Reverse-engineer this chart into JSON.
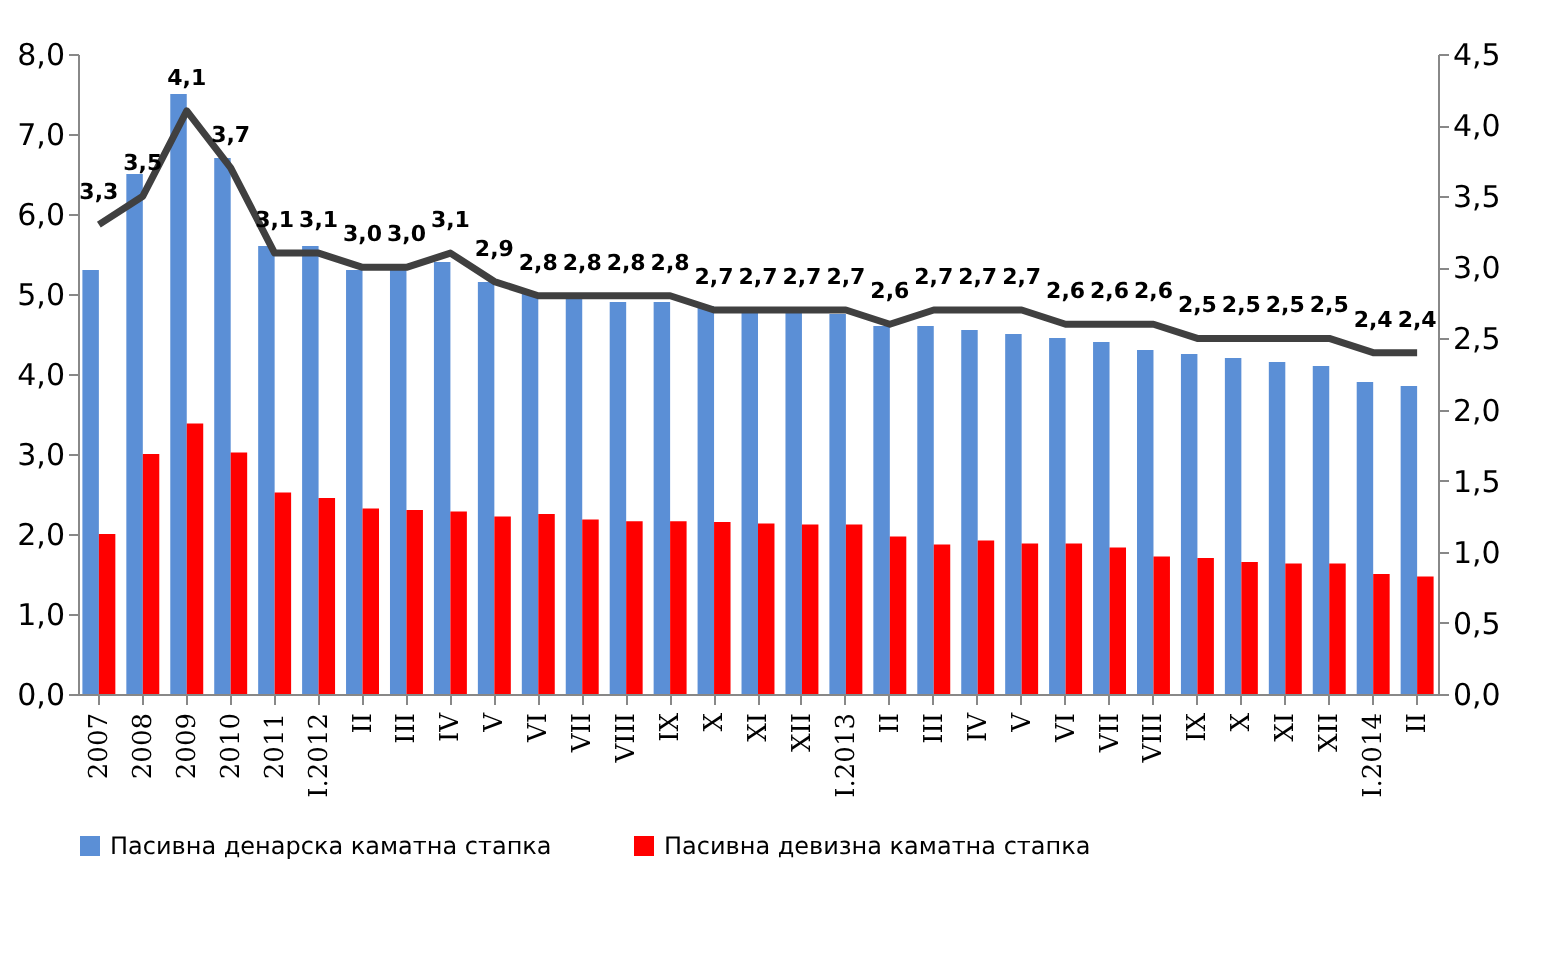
{
  "chart_data": {
    "type": "bar",
    "categories": [
      "2007",
      "2008",
      "2009",
      "2010",
      "2011",
      "I.2012",
      "II",
      "III",
      "IV",
      "V",
      "VI",
      "VII",
      "VIII",
      "IX",
      "X",
      "XI",
      "XII",
      "I.2013",
      "II",
      "III",
      "IV",
      "V",
      "VI",
      "VII",
      "VIII",
      "IX",
      "X",
      "XI",
      "XII",
      "I.2014",
      "II"
    ],
    "series": [
      {
        "name": "Пасивна денарска каматна стапка",
        "color": "#5b8fd6",
        "values": [
          5.3,
          6.5,
          7.5,
          6.7,
          5.6,
          5.6,
          5.3,
          5.3,
          5.4,
          5.15,
          5.0,
          4.95,
          4.9,
          4.9,
          4.85,
          4.8,
          4.8,
          4.75,
          4.6,
          4.6,
          4.55,
          4.5,
          4.45,
          4.4,
          4.3,
          4.25,
          4.2,
          4.15,
          4.1,
          3.9,
          3.85
        ]
      },
      {
        "name": "Пасивна девизна каматна стапка",
        "color": "#ff0000",
        "values": [
          2.0,
          3.0,
          3.38,
          3.02,
          2.52,
          2.45,
          2.32,
          2.3,
          2.28,
          2.22,
          2.25,
          2.18,
          2.16,
          2.16,
          2.15,
          2.13,
          2.12,
          2.12,
          1.97,
          1.87,
          1.92,
          1.88,
          1.88,
          1.83,
          1.72,
          1.7,
          1.65,
          1.63,
          1.63,
          1.5,
          1.47
        ]
      },
      {
        "type": "line",
        "axis": "y2",
        "color": "#404040",
        "values": [
          3.3,
          3.5,
          4.1,
          3.7,
          3.1,
          3.1,
          3.0,
          3.0,
          3.1,
          2.9,
          2.8,
          2.8,
          2.8,
          2.8,
          2.7,
          2.7,
          2.7,
          2.7,
          2.6,
          2.7,
          2.7,
          2.7,
          2.6,
          2.6,
          2.6,
          2.5,
          2.5,
          2.5,
          2.5,
          2.4,
          2.4
        ],
        "value_labels": [
          "3,3",
          "3,5",
          "4,1",
          "3,7",
          "3,1",
          "3,1",
          "3,0",
          "3,0",
          "3,1",
          "2,9",
          "2,8",
          "2,8",
          "2,8",
          "2,8",
          "2,7",
          "2,7",
          "2,7",
          "2,7",
          "2,6",
          "2,7",
          "2,7",
          "2,7",
          "2,6",
          "2,6",
          "2,6",
          "2,5",
          "2,5",
          "2,5",
          "2,5",
          "2,4",
          "2,4"
        ]
      }
    ],
    "ylim": [
      0,
      8
    ],
    "yticks": [
      {
        "value": 0,
        "label": "0,0"
      },
      {
        "value": 1,
        "label": "1,0"
      },
      {
        "value": 2,
        "label": "2,0"
      },
      {
        "value": 3,
        "label": "3,0"
      },
      {
        "value": 4,
        "label": "4,0"
      },
      {
        "value": 5,
        "label": "5,0"
      },
      {
        "value": 6,
        "label": "6,0"
      },
      {
        "value": 7,
        "label": "7,0"
      },
      {
        "value": 8,
        "label": "8,0"
      }
    ],
    "y2lim": [
      0,
      4.5
    ],
    "y2ticks": [
      {
        "value": 0,
        "label": "0,0"
      },
      {
        "value": 0.5,
        "label": "0,5"
      },
      {
        "value": 1,
        "label": "1,0"
      },
      {
        "value": 1.5,
        "label": "1,5"
      },
      {
        "value": 2,
        "label": "2,0"
      },
      {
        "value": 2.5,
        "label": "2,5"
      },
      {
        "value": 3,
        "label": "3,0"
      },
      {
        "value": 3.5,
        "label": "3,5"
      },
      {
        "value": 4,
        "label": "4,0"
      },
      {
        "value": 4.5,
        "label": "4,5"
      }
    ],
    "legend": "bottom",
    "grid": false
  }
}
